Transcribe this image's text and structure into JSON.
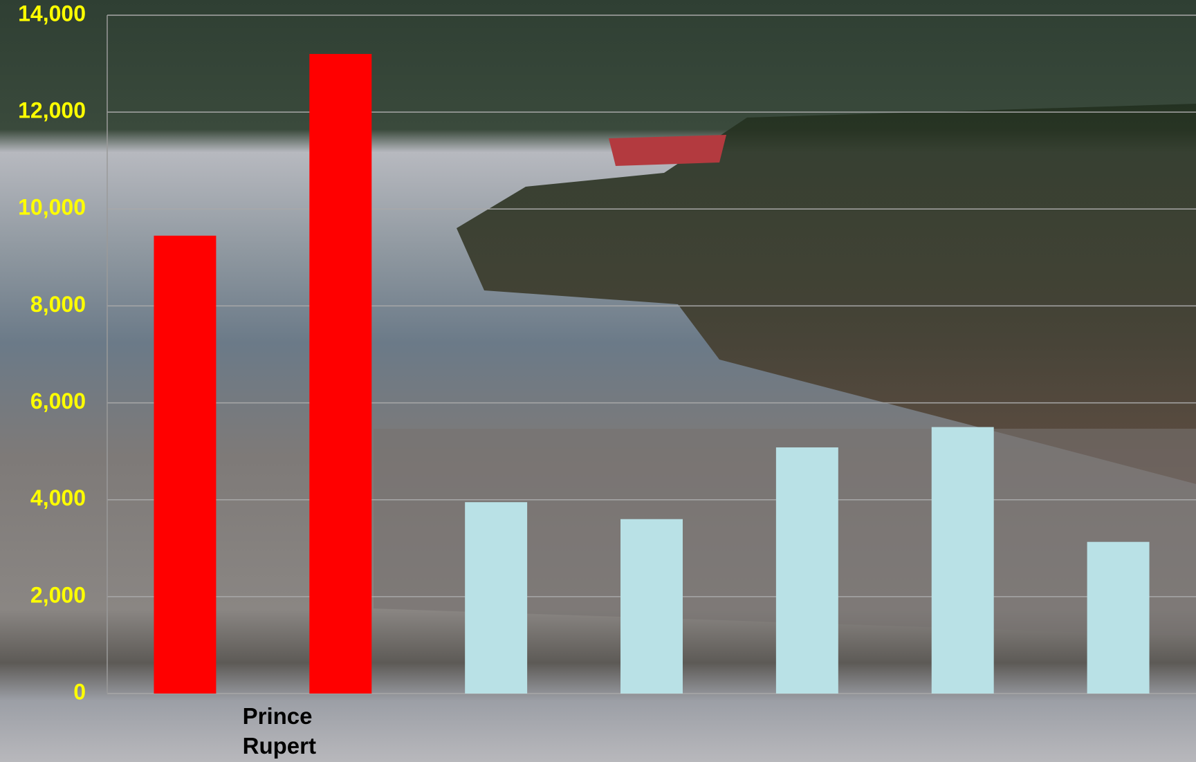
{
  "chart_data": {
    "type": "bar",
    "categories": [
      "Prince Rupert",
      null,
      null,
      null,
      null,
      null,
      null
    ],
    "values": [
      9450,
      13200,
      3950,
      3600,
      5080,
      5500,
      3130
    ],
    "colors": [
      "#ff0000",
      "#ff0000",
      "#b9e1e6",
      "#b9e1e6",
      "#b9e1e6",
      "#b9e1e6",
      "#b9e1e6"
    ],
    "ylim": [
      0,
      14000
    ],
    "yticks": [
      0,
      {
        "value": 2000,
        "label": "2,000"
      },
      {
        "value": 4000,
        "label": "4,000"
      },
      {
        "value": 6000,
        "label": "6,000"
      },
      {
        "value": 8000,
        "label": "8,000"
      },
      {
        "value": 10000,
        "label": "10,000"
      },
      {
        "value": 12000,
        "label": "12,000"
      },
      {
        "value": 14000,
        "label": "14,000"
      }
    ],
    "grid": true
  }
}
